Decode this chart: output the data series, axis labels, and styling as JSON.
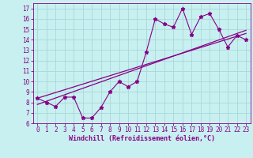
{
  "x_data": [
    0,
    1,
    2,
    3,
    4,
    5,
    6,
    7,
    8,
    9,
    10,
    11,
    12,
    13,
    14,
    15,
    16,
    17,
    18,
    19,
    20,
    21,
    22,
    23
  ],
  "y_data": [
    8.4,
    8.0,
    7.6,
    8.5,
    8.5,
    6.5,
    6.5,
    7.5,
    9.0,
    10.0,
    9.5,
    10.0,
    12.8,
    16.0,
    15.5,
    15.2,
    17.0,
    14.5,
    16.2,
    16.5,
    15.0,
    13.3,
    14.4,
    14.0
  ],
  "line_color": "#880088",
  "trend1_x": [
    0,
    23
  ],
  "trend1_y": [
    8.4,
    14.6
  ],
  "trend2_x": [
    0,
    23
  ],
  "trend2_y": [
    7.8,
    14.9
  ],
  "xlim": [
    -0.5,
    23.5
  ],
  "ylim": [
    6,
    17.5
  ],
  "yticks": [
    6,
    7,
    8,
    9,
    10,
    11,
    12,
    13,
    14,
    15,
    16,
    17
  ],
  "xticks": [
    0,
    1,
    2,
    3,
    4,
    5,
    6,
    7,
    8,
    9,
    10,
    11,
    12,
    13,
    14,
    15,
    16,
    17,
    18,
    19,
    20,
    21,
    22,
    23
  ],
  "xlabel": "Windchill (Refroidissement éolien,°C)",
  "bg_color": "#c8f0f0",
  "grid_color": "#a8d8d8",
  "line_width": 0.8,
  "marker": "*",
  "marker_size": 3.5,
  "tick_fontsize": 5.5,
  "xlabel_fontsize": 6.0
}
